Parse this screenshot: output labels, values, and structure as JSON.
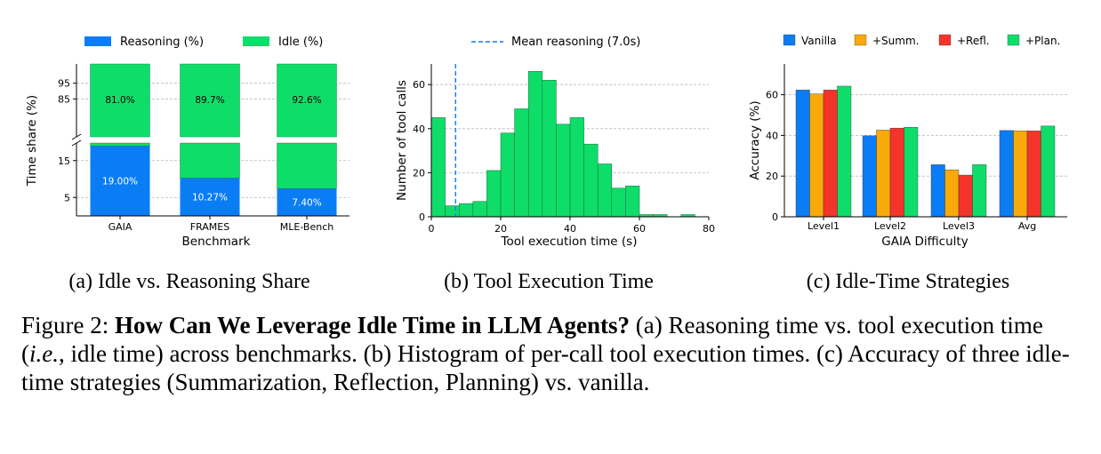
{
  "subcaptions": {
    "a": "(a) Idle vs. Reasoning Share",
    "b": "(b) Tool Execution Time",
    "c": "(c) Idle-Time Strategies"
  },
  "figure_caption": {
    "label": "Figure 2: ",
    "title": "How Can We Leverage Idle Time in LLM Agents?",
    "part1": " (a) Reasoning time vs. tool execution time (",
    "ie": "i.e.",
    "part2": ", idle time) across benchmarks. (b) Histogram of per-call tool execution times. (c) Accuracy of three idle-time strategies (Summarization, Reflection, Planning) vs. vanilla."
  },
  "colors": {
    "blue": "#0a7df5",
    "green": "#0fdd6a",
    "orange": "#f9a90a",
    "red": "#f4342a"
  },
  "chart_data": [
    {
      "type": "bar",
      "stacked": true,
      "broken_y_axis": true,
      "categories": [
        "GAIA",
        "FRAMES",
        "MLE-Bench"
      ],
      "xlabel": "Benchmark",
      "ylabel": "Time share (%)",
      "legend": [
        "Reasoning (%)",
        "Idle (%)"
      ],
      "legend_position": "top",
      "series": [
        {
          "name": "Reasoning (%)",
          "values": [
            19.0,
            10.27,
            7.4
          ],
          "labels": [
            "19.00%",
            "10.27%",
            "7.40%"
          ]
        },
        {
          "name": "Idle (%)",
          "values": [
            81.0,
            89.7,
            92.6
          ],
          "labels": [
            "81.0%",
            "89.7%",
            "92.6%"
          ]
        }
      ],
      "yticks_lower": [
        "5",
        "15"
      ],
      "yticks_upper": [
        "85",
        "95"
      ],
      "ylim_lower": [
        0,
        20
      ],
      "ylim_upper": [
        80,
        100
      ],
      "grid": true
    },
    {
      "type": "bar",
      "histogram": true,
      "xlabel": "Tool execution time (s)",
      "ylabel": "Number of tool calls",
      "bin_width": 4,
      "bin_starts": [
        0,
        4,
        8,
        12,
        16,
        20,
        24,
        28,
        32,
        36,
        40,
        44,
        48,
        52,
        56,
        60,
        64,
        68,
        72,
        76
      ],
      "counts": [
        45,
        5,
        6,
        7,
        21,
        38,
        49,
        66,
        62,
        42,
        45,
        33,
        24,
        13,
        14,
        1,
        1,
        0,
        1,
        0
      ],
      "mean_line": {
        "value": 7.0,
        "label": "Mean reasoning (7.0s)"
      },
      "xticks": [
        "0",
        "20",
        "40",
        "60",
        "80"
      ],
      "yticks": [
        "0",
        "20",
        "40",
        "60"
      ],
      "xlim": [
        0,
        80
      ],
      "ylim": [
        0,
        72
      ],
      "grid": true
    },
    {
      "type": "bar",
      "grouped": true,
      "categories": [
        "Level1",
        "Level2",
        "Level3",
        "Avg"
      ],
      "xlabel": "GAIA Difficulty",
      "ylabel": "Accuracy (%)",
      "legend_position": "top",
      "series": [
        {
          "name": "Vanilla",
          "values": [
            62.3,
            39.8,
            25.6,
            42.4
          ]
        },
        {
          "name": "+Summ.",
          "values": [
            60.4,
            42.6,
            23.1,
            42.2
          ]
        },
        {
          "name": "+Refl.",
          "values": [
            62.3,
            43.6,
            20.5,
            42.2
          ]
        },
        {
          "name": "+Plan.",
          "values": [
            64.2,
            44.0,
            25.6,
            44.6
          ]
        }
      ],
      "yticks": [
        "0",
        "20",
        "40",
        "60"
      ],
      "ylim": [
        0,
        75
      ],
      "grid": true
    }
  ]
}
